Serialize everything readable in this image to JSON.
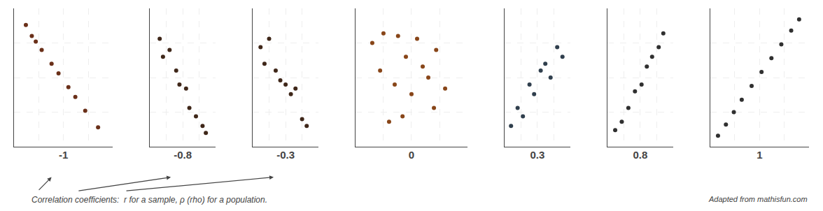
{
  "chart_data": [
    {
      "type": "scatter",
      "x_label": "-1",
      "x": [
        0.12,
        0.18,
        0.22,
        0.28,
        0.38,
        0.45,
        0.55,
        0.62,
        0.72,
        0.85
      ],
      "values": [
        0.88,
        0.8,
        0.76,
        0.7,
        0.6,
        0.53,
        0.43,
        0.36,
        0.26,
        0.14
      ],
      "color": "#5A1A00",
      "xlim": [
        0,
        1.0
      ],
      "ylim": [
        0,
        1.0
      ],
      "xticks": [
        0.25,
        0.5,
        0.75
      ],
      "yticks": [
        0.25,
        0.5,
        0.75
      ],
      "grid": true,
      "tick_labels": false,
      "annotations": [
        "Correlation coefficients:  r for a sample, ρ (rho) for a population."
      ]
    },
    {
      "type": "scatter",
      "x_label": "-0.8",
      "x": [
        0.15,
        0.2,
        0.3,
        0.4,
        0.45,
        0.55,
        0.6,
        0.7,
        0.8,
        0.85
      ],
      "values": [
        0.78,
        0.65,
        0.7,
        0.55,
        0.45,
        0.42,
        0.28,
        0.22,
        0.15,
        0.1
      ],
      "color": "#2A1000",
      "xlim": [
        0,
        1.0
      ],
      "ylim": [
        0,
        1.0
      ],
      "xticks": [
        0.25,
        0.5,
        0.75
      ],
      "yticks": [
        0.25,
        0.5,
        0.75
      ],
      "grid": true,
      "tick_labels": false
    },
    {
      "type": "scatter",
      "x_label": "-0.3",
      "x": [
        0.12,
        0.18,
        0.25,
        0.35,
        0.42,
        0.5,
        0.58,
        0.65,
        0.75,
        0.82
      ],
      "values": [
        0.72,
        0.6,
        0.78,
        0.55,
        0.48,
        0.45,
        0.38,
        0.42,
        0.2,
        0.15
      ],
      "color": "#2A1000",
      "xlim": [
        0,
        1.0
      ],
      "ylim": [
        0,
        1.0
      ],
      "xticks": [
        0.25,
        0.5,
        0.75
      ],
      "yticks": [
        0.25,
        0.5,
        0.75
      ],
      "grid": true,
      "tick_labels": false
    },
    {
      "type": "scatter",
      "x_label": "0",
      "x": [
        0.15,
        0.25,
        0.38,
        0.45,
        0.55,
        0.22,
        0.6,
        0.72,
        0.35,
        0.65,
        0.5,
        0.8,
        0.42,
        0.7,
        0.3
      ],
      "values": [
        0.75,
        0.82,
        0.8,
        0.65,
        0.78,
        0.55,
        0.58,
        0.7,
        0.45,
        0.5,
        0.38,
        0.42,
        0.22,
        0.28,
        0.18
      ],
      "color": "#7B3200",
      "xlim": [
        0,
        1.0
      ],
      "ylim": [
        0,
        1.0
      ],
      "xticks": [
        0.25,
        0.5,
        0.75
      ],
      "yticks": [
        0.25,
        0.5,
        0.75
      ],
      "grid": true,
      "tick_labels": false
    },
    {
      "type": "scatter",
      "x_label": "0.3",
      "x": [
        0.1,
        0.2,
        0.28,
        0.38,
        0.45,
        0.55,
        0.62,
        0.7,
        0.8,
        0.88
      ],
      "values": [
        0.15,
        0.28,
        0.22,
        0.45,
        0.38,
        0.55,
        0.6,
        0.5,
        0.72,
        0.65
      ],
      "color": "#1A2A3A",
      "xlim": [
        0,
        1.0
      ],
      "ylim": [
        0,
        1.0
      ],
      "xticks": [
        0.25,
        0.5,
        0.75
      ],
      "yticks": [
        0.25,
        0.5,
        0.75
      ],
      "grid": true,
      "tick_labels": false
    },
    {
      "type": "scatter",
      "x_label": "0.8",
      "x": [
        0.12,
        0.22,
        0.32,
        0.42,
        0.52,
        0.6,
        0.68,
        0.78,
        0.85
      ],
      "values": [
        0.12,
        0.18,
        0.28,
        0.4,
        0.45,
        0.58,
        0.65,
        0.72,
        0.82
      ],
      "color": "#1A1A1A",
      "xlim": [
        0,
        1.0
      ],
      "ylim": [
        0,
        1.0
      ],
      "xticks": [
        0.25,
        0.5,
        0.75
      ],
      "yticks": [
        0.25,
        0.5,
        0.75
      ],
      "grid": true,
      "tick_labels": false
    },
    {
      "type": "scatter",
      "x_label": "1",
      "x": [
        0.08,
        0.16,
        0.24,
        0.32,
        0.42,
        0.52,
        0.62,
        0.72,
        0.82,
        0.9
      ],
      "values": [
        0.08,
        0.16,
        0.25,
        0.34,
        0.44,
        0.54,
        0.64,
        0.74,
        0.84,
        0.92
      ],
      "color": "#1A1A1A",
      "xlim": [
        0,
        1.0
      ],
      "ylim": [
        0,
        1.0
      ],
      "xticks": [
        0.25,
        0.5,
        0.75
      ],
      "yticks": [
        0.25,
        0.5,
        0.75
      ],
      "grid": true,
      "tick_labels": false,
      "annotations": [
        "Adapted from mathisfun.com"
      ]
    }
  ]
}
